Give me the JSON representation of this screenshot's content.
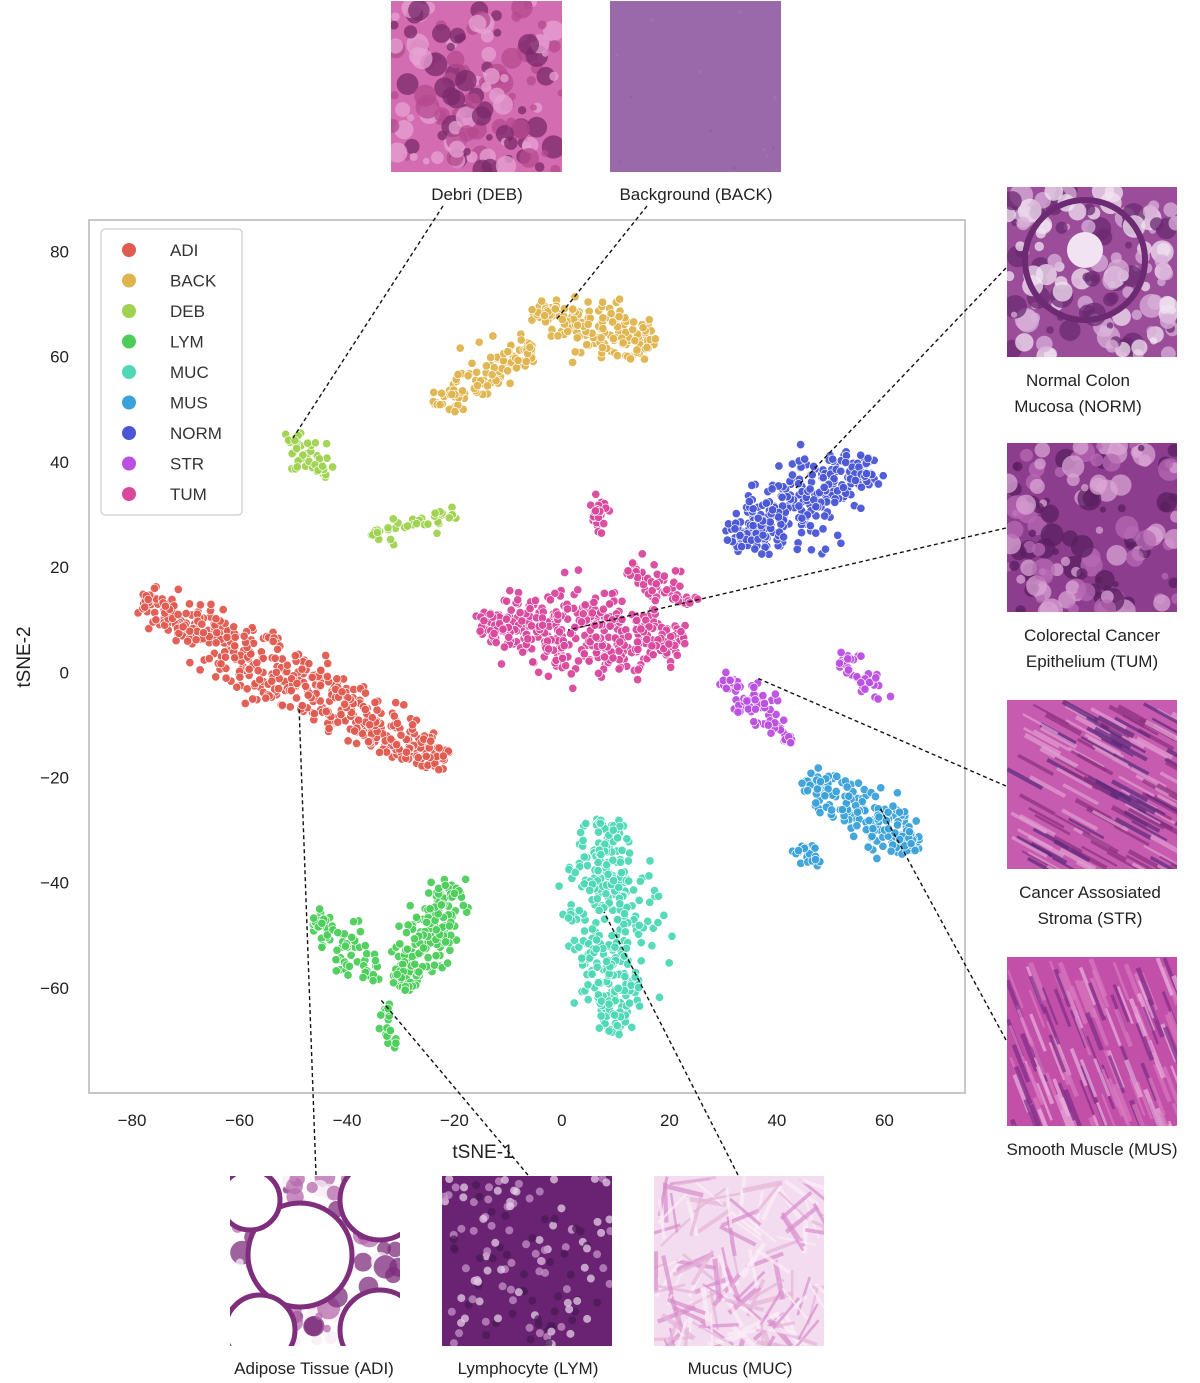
{
  "chart_data": {
    "type": "scatter",
    "title": "",
    "xlabel": "tSNE-1",
    "ylabel": "tSNE-2",
    "xlim": [
      -88,
      75
    ],
    "ylim": [
      -80,
      86
    ],
    "xticks": [
      -80,
      -60,
      -40,
      -20,
      0,
      20,
      40,
      60
    ],
    "yticks": [
      80,
      60,
      40,
      20,
      0,
      -20,
      -40,
      -60
    ],
    "xtick_labels": [
      "−80",
      "−60",
      "−40",
      "−20",
      "0",
      "20",
      "40",
      "60"
    ],
    "ytick_labels": [
      "80",
      "60",
      "40",
      "20",
      "0",
      "−20",
      "−40",
      "−60"
    ],
    "grid": false,
    "legend_position": "top-left",
    "series": [
      {
        "name": "ADI",
        "color": "#e05a4f",
        "clusters": [
          {
            "cx": [
              -78,
              -22
            ],
            "cy": [
              14,
              -17
            ],
            "half_width": 6,
            "n": 520
          }
        ]
      },
      {
        "name": "BACK",
        "color": "#dfb44e",
        "clusters": [
          {
            "cx": [
              -5,
              17
            ],
            "cy": [
              69,
              62
            ],
            "half_width": 5,
            "n": 170
          },
          {
            "cx": [
              -23,
              -5
            ],
            "cy": [
              51,
              62
            ],
            "half_width": 4,
            "n": 110
          }
        ]
      },
      {
        "name": "DEB",
        "color": "#9fd24f",
        "clusters": [
          {
            "cx": [
              -51,
              -44
            ],
            "cy": [
              44,
              38
            ],
            "half_width": 3,
            "n": 45
          },
          {
            "cx": [
              -36,
              -20
            ],
            "cy": [
              26,
              30
            ],
            "half_width": 2,
            "n": 40
          }
        ]
      },
      {
        "name": "LYM",
        "color": "#4ccd5a",
        "clusters": [
          {
            "cx": [
              -30,
              -20
            ],
            "cy": [
              -60,
              -40
            ],
            "half_width": 5,
            "n": 190
          },
          {
            "cx": [
              -46,
              -34
            ],
            "cy": [
              -47,
              -58
            ],
            "half_width": 4,
            "n": 80
          },
          {
            "cx": [
              -33,
              -31
            ],
            "cy": [
              -63,
              -72
            ],
            "half_width": 1.5,
            "n": 20
          }
        ]
      },
      {
        "name": "MUC",
        "color": "#4ed8b5",
        "clusters": [
          {
            "cx": [
              8,
              10
            ],
            "cy": [
              -28,
              -68
            ],
            "half_width": 8,
            "n": 380
          }
        ]
      },
      {
        "name": "MUS",
        "color": "#3aa1d9",
        "clusters": [
          {
            "cx": [
              46,
              66
            ],
            "cy": [
              -20,
              -33
            ],
            "half_width": 5,
            "n": 190
          },
          {
            "cx": [
              43,
              48
            ],
            "cy": [
              -34,
              -36
            ],
            "half_width": 2,
            "n": 20
          }
        ]
      },
      {
        "name": "NORM",
        "color": "#4a56d6",
        "clusters": [
          {
            "cx": [
              32,
              58
            ],
            "cy": [
              25,
              40
            ],
            "half_width": 7,
            "n": 310
          }
        ]
      },
      {
        "name": "STR",
        "color": "#bb4fe0",
        "clusters": [
          {
            "cx": [
              30,
              43
            ],
            "cy": [
              -1,
              -13
            ],
            "half_width": 3,
            "n": 90
          },
          {
            "cx": [
              52,
              60
            ],
            "cy": [
              3,
              -6
            ],
            "half_width": 2,
            "n": 40
          }
        ]
      },
      {
        "name": "TUM",
        "color": "#d9489c",
        "clusters": [
          {
            "cx": [
              -15,
              22
            ],
            "cy": [
              9,
              6
            ],
            "half_width": 8,
            "n": 430
          },
          {
            "cx": [
              12,
              25
            ],
            "cy": [
              20,
              13
            ],
            "half_width": 3,
            "n": 55
          },
          {
            "cx": [
              6,
              8
            ],
            "cy": [
              30,
              30
            ],
            "half_width": 3,
            "n": 25
          }
        ]
      }
    ]
  },
  "thumbnails": [
    {
      "label": "Debri (DEB)",
      "palette": [
        "#d36cb1",
        "#b64a8f",
        "#e7a3d4",
        "#7a2a6b"
      ]
    },
    {
      "label": "Background (BACK)",
      "palette": [
        "#9a69a9",
        "#8f5f9f",
        "#a575b3"
      ]
    },
    {
      "label": "Normal Colon Mucosa (NORM)",
      "lines": [
        "Normal Colon",
        "Mucosa (NORM)"
      ],
      "palette": [
        "#9b4d9a",
        "#d8b0d8",
        "#6b2a72",
        "#f2e3f2"
      ]
    },
    {
      "label": "Colorectal Cancer Epithelium (TUM)",
      "lines": [
        "Colorectal Cancer",
        "Epithelium (TUM)"
      ],
      "palette": [
        "#8c3d8d",
        "#b76ab4",
        "#5a1f60",
        "#d9a4d4"
      ]
    },
    {
      "label": "Cancer Assosiated Stroma (STR)",
      "lines": [
        "Cancer Assosiated",
        "Stroma (STR)"
      ],
      "palette": [
        "#c75bb0",
        "#e39fd2",
        "#8b2f7f",
        "#5a2a7a"
      ]
    },
    {
      "label": "Smooth Muscle (MUS)",
      "palette": [
        "#c24fa8",
        "#d879c0",
        "#7d2d88",
        "#e9b2de"
      ]
    },
    {
      "label": "Adipose Tissue (ADI)",
      "palette": [
        "#ffffff",
        "#b768ac",
        "#7e2e7c",
        "#f6eef6"
      ]
    },
    {
      "label": "Lymphocyte (LYM)",
      "palette": [
        "#6a2372",
        "#c592c9",
        "#e6cde7",
        "#4b1a57"
      ]
    },
    {
      "label": "Mucus (MUC)",
      "palette": [
        "#f3dcef",
        "#e6b3d9",
        "#d98ccc",
        "#fbeef8"
      ]
    }
  ]
}
